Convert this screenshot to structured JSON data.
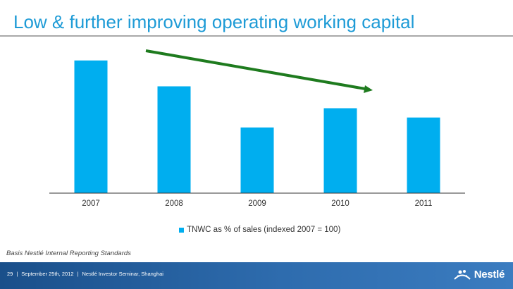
{
  "slide": {
    "title": "Low & further improving operating working capital",
    "footnote": "Basis Nestlé Internal Reporting Standards"
  },
  "footer": {
    "page_number": "29",
    "date": "September 25th, 2012",
    "event": "Nestlé Investor Seminar, Shanghai",
    "brand": "Nestlé"
  },
  "colors": {
    "bar": "#00AEEF",
    "trend_arrow": "#1E7B1E",
    "title": "#1E9BD6",
    "footer": "#1A4F8A"
  },
  "chart_data": {
    "type": "bar",
    "categories": [
      "2007",
      "2008",
      "2009",
      "2010",
      "2011"
    ],
    "series": [
      {
        "name": "TNWC as % of sales (indexed 2007 = 100)",
        "values": [
          100,
          80.5,
          49.5,
          64,
          57
        ]
      }
    ],
    "ylim": [
      0,
      102
    ],
    "grid": false,
    "legend": "bottom-center",
    "annotations": [
      {
        "type": "trend-arrow",
        "direction": "down",
        "from_category": "2007",
        "to_category": "2010"
      }
    ]
  }
}
